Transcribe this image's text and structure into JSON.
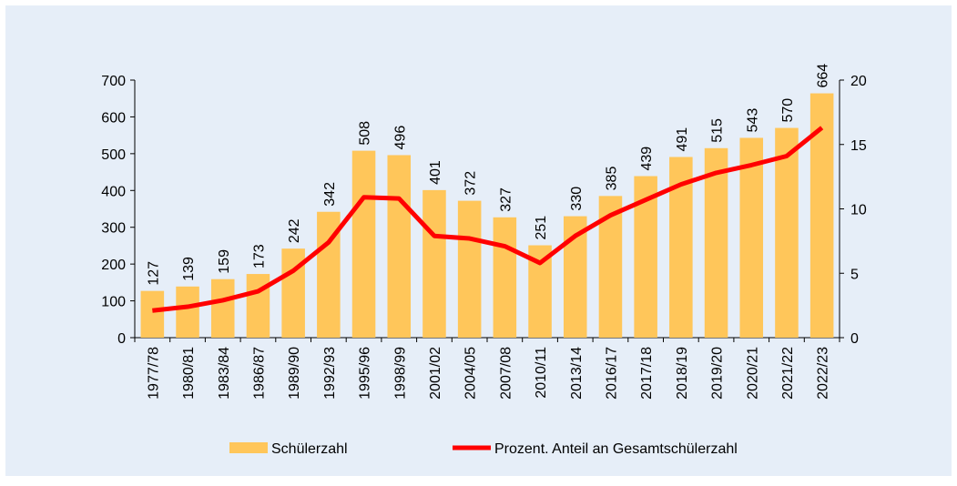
{
  "chart_data": {
    "type": "bar",
    "categories": [
      "1977/78",
      "1980/81",
      "1983/84",
      "1986/87",
      "1989/90",
      "1992/93",
      "1995/96",
      "1998/99",
      "2001/02",
      "2004/05",
      "2007/08",
      "2010/11",
      "2013/14",
      "2016/17",
      "2017/18",
      "2018/19",
      "2019/20",
      "2020/21",
      "2021/22",
      "2022/23"
    ],
    "series": [
      {
        "name": "Schülerzahl",
        "type": "bar",
        "color": "#ffc65a",
        "values": [
          127,
          139,
          159,
          173,
          242,
          342,
          508,
          496,
          401,
          372,
          327,
          251,
          330,
          385,
          439,
          491,
          515,
          543,
          570,
          664
        ]
      },
      {
        "name": "Prozent. Anteil an Gesamtschülerzahl",
        "type": "line",
        "axis": "y2",
        "color": "#ff0000",
        "values": [
          2.1,
          2.4,
          2.9,
          3.6,
          5.2,
          7.4,
          10.9,
          10.8,
          7.9,
          7.7,
          7.1,
          5.8,
          7.9,
          9.5,
          10.7,
          11.9,
          12.8,
          13.4,
          14.1,
          16.3
        ]
      }
    ],
    "ylim": [
      0,
      700
    ],
    "yticks": [
      0,
      100,
      200,
      300,
      400,
      500,
      600,
      700
    ],
    "y2lim": [
      0,
      20
    ],
    "y2ticks": [
      0,
      5,
      10,
      15,
      20
    ],
    "legend": "bottom"
  }
}
